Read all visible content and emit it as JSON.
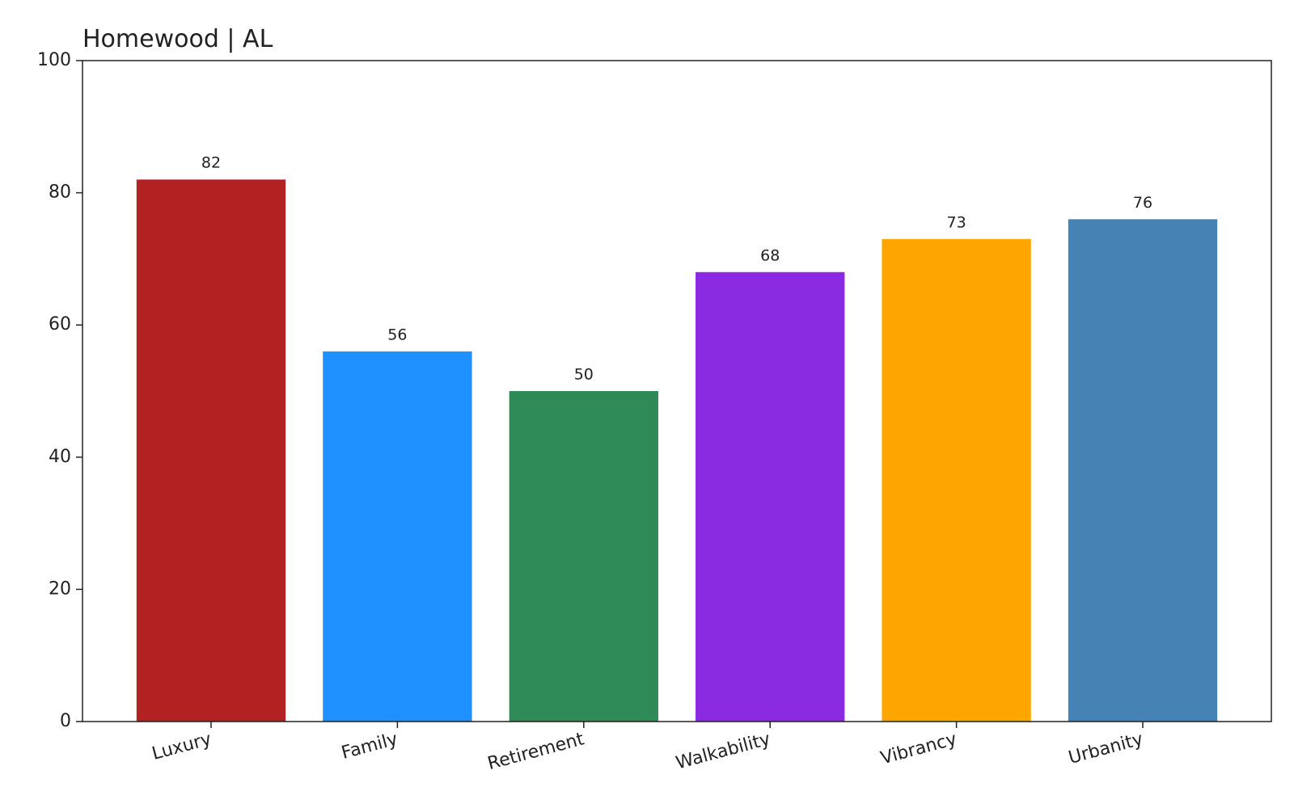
{
  "chart_data": {
    "type": "bar",
    "title": "Homewood | AL",
    "categories": [
      "Luxury",
      "Family",
      "Retirement",
      "Walkability",
      "Vibrancy",
      "Urbanity"
    ],
    "values": [
      82,
      56,
      50,
      68,
      73,
      76
    ],
    "colors": [
      "#b22222",
      "#1e90ff",
      "#2e8b57",
      "#8a2be2",
      "#ffa500",
      "#4682b4"
    ],
    "ylim": [
      0,
      100
    ],
    "yticks": [
      0,
      20,
      40,
      60,
      80,
      100
    ],
    "grid": false
  }
}
